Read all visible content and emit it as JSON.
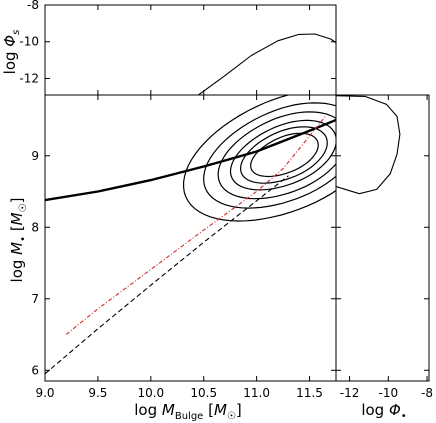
{
  "chart_data": [
    {
      "panel": "main",
      "type": "line",
      "xlabel": "log M_Bulge [M_☉]",
      "ylabel": "log M_• [M_☉]",
      "xlim": [
        9.0,
        11.75
      ],
      "ylim": [
        5.85,
        9.85
      ],
      "xticks": [
        "9.0",
        "9.5",
        "10.0",
        "10.5",
        "11.0",
        "11.5"
      ],
      "xtick_values": [
        9.0,
        9.5,
        10.0,
        10.5,
        11.0,
        11.5
      ],
      "yticks": [
        "6",
        "7",
        "8",
        "9"
      ],
      "ytick_values": [
        6,
        7,
        8,
        9
      ],
      "grid": false,
      "series": [
        {
          "style": "thick-solid",
          "color": "#000000",
          "x": [
            9.0,
            9.5,
            10.0,
            10.5,
            11.0,
            11.5,
            11.75
          ],
          "y": [
            8.38,
            8.5,
            8.66,
            8.85,
            9.06,
            9.35,
            9.5
          ]
        },
        {
          "style": "dashed",
          "color": "#000000",
          "x": [
            9.0,
            9.5,
            10.0,
            10.5,
            11.0,
            11.3
          ],
          "y": [
            5.95,
            6.58,
            7.19,
            7.79,
            8.37,
            8.72
          ]
        },
        {
          "style": "dash-dot",
          "color": "#d62728",
          "x": [
            9.2,
            9.5,
            10.0,
            10.5,
            11.0,
            11.25,
            11.65
          ],
          "y": [
            6.5,
            6.86,
            7.41,
            7.96,
            8.5,
            8.82,
            9.55
          ]
        }
      ],
      "contours": {
        "center": [
          11.28,
          9.02
        ],
        "levels": [
          {
            "x_half_width": 0.32,
            "y_half_width": 0.25
          },
          {
            "x_half_width": 0.41,
            "y_half_width": 0.33
          },
          {
            "x_half_width": 0.5,
            "y_half_width": 0.41
          },
          {
            "x_half_width": 0.61,
            "y_half_width": 0.52
          },
          {
            "x_half_width": 0.74,
            "y_half_width": 0.63
          },
          {
            "x_half_width": 0.92,
            "y_half_width": 0.78
          }
        ]
      }
    },
    {
      "panel": "top",
      "type": "line",
      "xlabel": "",
      "ylabel": "log Φ_s",
      "xlim": [
        9.0,
        11.75
      ],
      "ylim": [
        -12.9,
        -8.0
      ],
      "yticks": [
        "-8",
        "-10",
        "-12"
      ],
      "ytick_values": [
        -8,
        -10,
        -12
      ],
      "series": [
        {
          "style": "solid",
          "color": "#000000",
          "x": [
            10.45,
            10.7,
            10.95,
            11.2,
            11.4,
            11.55,
            11.7,
            11.75
          ],
          "y": [
            -12.9,
            -11.85,
            -10.75,
            -9.95,
            -9.6,
            -9.58,
            -9.85,
            -10.05
          ]
        }
      ]
    },
    {
      "panel": "right",
      "type": "line",
      "xlabel": "log Φ_•",
      "ylabel": "",
      "xlim": [
        -12.7,
        -7.9
      ],
      "ylim": [
        5.85,
        9.85
      ],
      "xticks": [
        "-12",
        "-10",
        "-8"
      ],
      "xtick_values": [
        -12,
        -10,
        -8
      ],
      "series": [
        {
          "style": "solid",
          "color": "#000000",
          "x": [
            -12.7,
            -11.5,
            -10.6,
            -9.9,
            -9.55,
            -9.4,
            -9.55,
            -10.1,
            -11.2,
            -12.7
          ],
          "y": [
            8.57,
            8.47,
            8.53,
            8.75,
            9.02,
            9.3,
            9.55,
            9.72,
            9.83,
            9.84
          ]
        }
      ]
    }
  ]
}
